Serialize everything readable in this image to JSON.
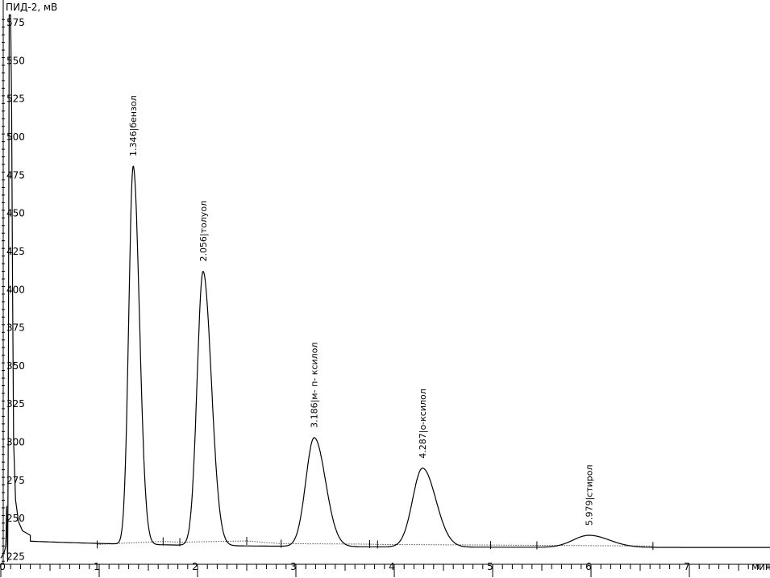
{
  "chart_data": {
    "type": "line",
    "ylabel": "ПИД-2, мВ",
    "xlabel": "мин",
    "xlim": [
      0,
      7.8
    ],
    "ylim": [
      220,
      580
    ],
    "x_ticks": [
      0,
      1,
      2,
      3,
      4,
      5,
      6,
      7
    ],
    "y_ticks": [
      225,
      250,
      275,
      300,
      325,
      350,
      375,
      400,
      425,
      450,
      475,
      500,
      525,
      550,
      575
    ],
    "grid": false,
    "legend": "none",
    "signal": {
      "baseline_start": 236,
      "baseline_end": 231,
      "solvent_peak": {
        "rt": 0.08,
        "height": 580
      }
    },
    "peaks": [
      {
        "label": "1.346|бензол",
        "rt": 1.346,
        "height": 481,
        "width": 0.045,
        "tail": 1.4
      },
      {
        "label": "2.056|толуол",
        "rt": 2.056,
        "height": 412,
        "width": 0.06,
        "tail": 1.4
      },
      {
        "label": "3.186|м- п- ксилол",
        "rt": 3.186,
        "height": 303,
        "width": 0.085,
        "tail": 1.35
      },
      {
        "label": "4.287|о-ксилол",
        "rt": 4.287,
        "height": 283,
        "width": 0.1,
        "tail": 1.35
      },
      {
        "label": "5.979|стирол",
        "rt": 5.979,
        "height": 239,
        "width": 0.16,
        "tail": 1.3
      }
    ],
    "integration_baseline": [
      [
        0.98,
        233
      ],
      [
        1.65,
        235
      ],
      [
        1.82,
        234.5
      ],
      [
        2.5,
        235.3
      ],
      [
        2.85,
        233.5
      ],
      [
        3.75,
        233.2
      ],
      [
        3.83,
        233
      ],
      [
        4.98,
        232.6
      ],
      [
        5.45,
        232.4
      ],
      [
        6.63,
        232
      ]
    ],
    "integration_markers": [
      0.98,
      1.65,
      1.82,
      2.5,
      2.85,
      3.75,
      3.83,
      4.98,
      5.45,
      6.63
    ],
    "colors": {
      "trace": "#000000",
      "baseline": "#555555"
    }
  }
}
